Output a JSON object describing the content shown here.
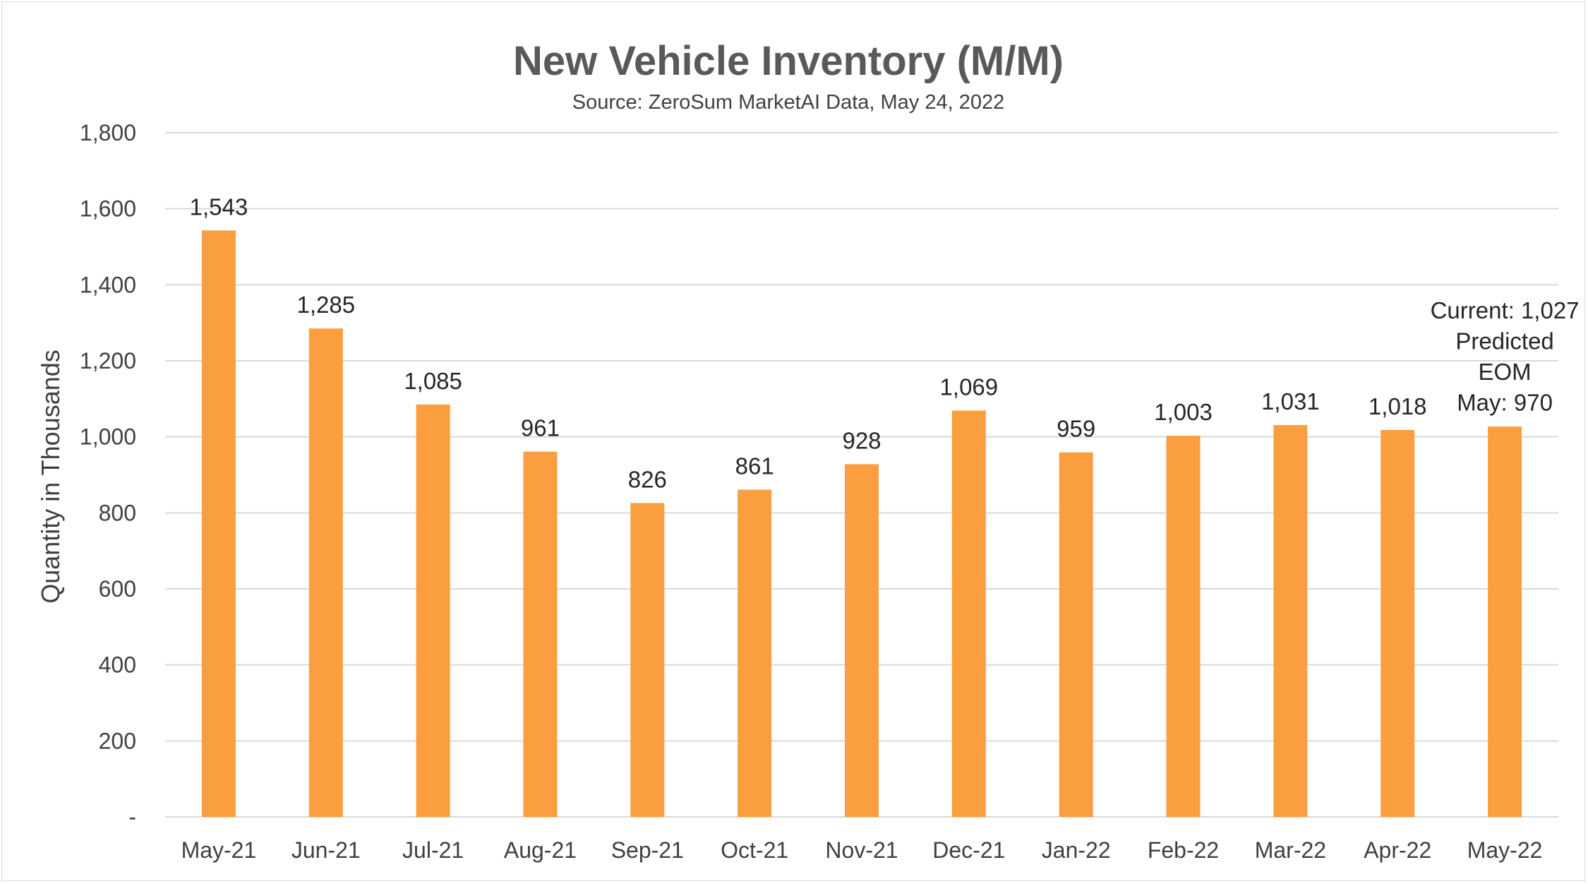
{
  "chart_data": {
    "type": "bar",
    "title": "New Vehicle Inventory (M/M)",
    "subtitle": "Source: ZeroSum MarketAI Data, May 24, 2022",
    "xlabel": "",
    "ylabel": "Quantity in Thousands",
    "ylim": [
      0,
      1800
    ],
    "yticks": [
      0,
      200,
      400,
      600,
      800,
      1000,
      1200,
      1400,
      1600,
      1800
    ],
    "ytick_labels": [
      "-",
      "200",
      "400",
      "600",
      "800",
      "1,000",
      "1,200",
      "1,400",
      "1,600",
      "1,800"
    ],
    "grid": true,
    "bar_color": "#FB9E3F",
    "grid_color": "#D9D9D9",
    "categories": [
      "May-21",
      "Jun-21",
      "Jul-21",
      "Aug-21",
      "Sep-21",
      "Oct-21",
      "Nov-21",
      "Dec-21",
      "Jan-22",
      "Feb-22",
      "Mar-22",
      "Apr-22",
      "May-22"
    ],
    "values": [
      1543,
      1285,
      1085,
      961,
      826,
      861,
      928,
      1069,
      959,
      1003,
      1031,
      1018,
      1027
    ],
    "data_labels": [
      "1,543",
      "1,285",
      "1,085",
      "961",
      "826",
      "861",
      "928",
      "1,069",
      "959",
      "1,003",
      "1,031",
      "1,018",
      null
    ],
    "annotation": {
      "category": "May-22",
      "lines": [
        "Current: 1,027",
        "Predicted",
        "EOM",
        "May: 970"
      ]
    }
  }
}
